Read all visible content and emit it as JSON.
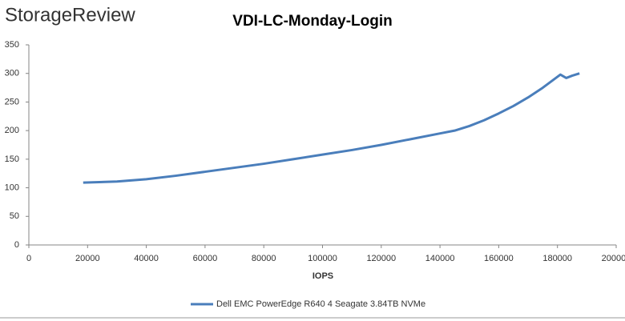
{
  "logo": "StorageReview",
  "chart_data": {
    "type": "line",
    "title": "VDI-LC-Monday-Login",
    "xlabel": "IOPS",
    "x": [
      18500,
      30000,
      40000,
      50000,
      60000,
      70000,
      80000,
      90000,
      100000,
      110000,
      120000,
      130000,
      140000,
      145000,
      150000,
      155000,
      160000,
      165000,
      170000,
      175000,
      181000,
      183000,
      185000,
      187500
    ],
    "series": [
      {
        "name": "Dell EMC PowerEdge R640 4 Seagate 3.84TB NVMe",
        "color": "#4a7ebb",
        "values": [
          109,
          111,
          115,
          121,
          128,
          135,
          142,
          150,
          158,
          166,
          175,
          185,
          195,
          200,
          208,
          218,
          230,
          243,
          258,
          275,
          298,
          292,
          296,
          300
        ]
      }
    ],
    "xlim": [
      0,
      200000
    ],
    "xticks": [
      0,
      20000,
      40000,
      60000,
      80000,
      100000,
      120000,
      140000,
      160000,
      180000,
      200000
    ],
    "ylim": [
      0,
      350
    ],
    "yticks": [
      0,
      50,
      100,
      150,
      200,
      250,
      300,
      350
    ],
    "legend": "bottom"
  }
}
